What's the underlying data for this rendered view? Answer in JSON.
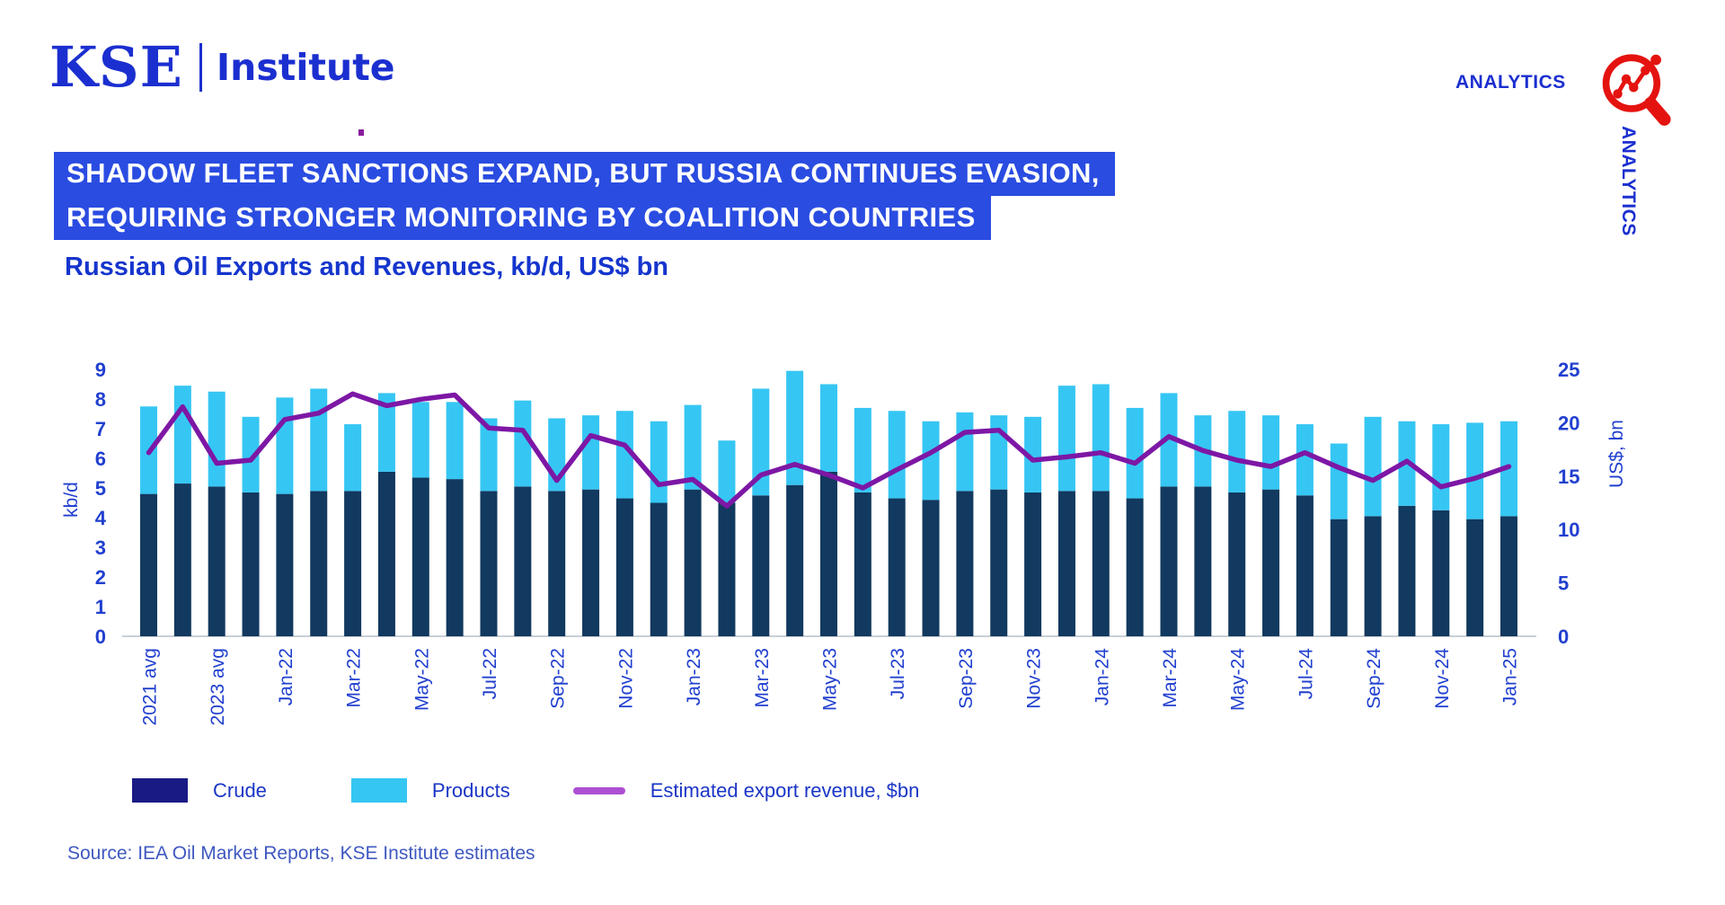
{
  "logo": {
    "kse": "KSE",
    "institute": "Institute"
  },
  "analytics": {
    "horizontal": "ANALYTICS",
    "vertical": "ANALYTICS",
    "icon": "magnifier-trend-icon"
  },
  "headline": {
    "line1": "SHADOW FLEET SANCTIONS EXPAND, BUT RUSSIA CONTINUES EVASION,",
    "line2": "REQUIRING STRONGER MONITORING BY COALITION COUNTRIES"
  },
  "chart_title": "Russian Oil Exports and Revenues, kb/d, US$ bn",
  "source": "Source: IEA Oil Market Reports, KSE Institute estimates",
  "colors": {
    "brand_blue": "#1b2fd0",
    "banner_bg": "#2a4ce1",
    "banner_text": "#ffffff",
    "title_blue": "#1535cd",
    "axis_text": "#2140cf",
    "axis_line": "#b9bfc9",
    "crude_bar": "#12395f",
    "products_bar": "#36c6f3",
    "revenue_line": "#7d17a5",
    "legend_crude_swatch": "#1a1a85",
    "legend_products_swatch": "#36c6f3",
    "legend_line_swatch": "#ad4fd2",
    "icon_red": "#e41310",
    "logo_dot_purple": "#8a1b9e",
    "source_text": "#3f58c0"
  },
  "legend": [
    {
      "label": "Crude",
      "type": "box",
      "color": "#1a1a85"
    },
    {
      "label": "Products",
      "type": "box",
      "color": "#36c6f3"
    },
    {
      "label": "Estimated export revenue, $bn",
      "type": "line",
      "color": "#ad4fd2"
    }
  ],
  "chart_data": {
    "type": "bar",
    "subtype": "stacked-bars-with-line",
    "title": "Russian Oil Exports and Revenues, kb/d, US$ bn",
    "y_axis": {
      "label": "kb/d",
      "range": [
        0,
        9
      ],
      "ticks": [
        0,
        1,
        2,
        3,
        4,
        5,
        6,
        7,
        8,
        9
      ]
    },
    "y2_axis": {
      "label": "US$, bn",
      "range": [
        0,
        25
      ],
      "ticks": [
        0,
        5,
        10,
        15,
        20,
        25
      ]
    },
    "x_tick_step": 2,
    "grid": false,
    "legend_position": "bottom",
    "categories": [
      "2021 avg",
      "2022 avg",
      "2023 avg",
      "2024 avg",
      "Jan-22",
      "Feb-22",
      "Mar-22",
      "Apr-22",
      "May-22",
      "Jun-22",
      "Jul-22",
      "Aug-22",
      "Sep-22",
      "Oct-22",
      "Nov-22",
      "Dec-22",
      "Jan-23",
      "Feb-23",
      "Mar-23",
      "Apr-23",
      "May-23",
      "Jun-23",
      "Jul-23",
      "Aug-23",
      "Sep-23",
      "Oct-23",
      "Nov-23",
      "Dec-23",
      "Jan-24",
      "Feb-24",
      "Mar-24",
      "Apr-24",
      "May-24",
      "Jun-24",
      "Jul-24",
      "Aug-24",
      "Sep-24",
      "Oct-24",
      "Nov-24",
      "Dec-24",
      "Jan-25"
    ],
    "series": [
      {
        "name": "Crude",
        "color": "#12395f",
        "values": [
          4.8,
          5.15,
          5.05,
          4.85,
          4.8,
          4.9,
          4.9,
          5.55,
          5.35,
          5.3,
          4.9,
          5.05,
          4.9,
          4.95,
          4.65,
          4.5,
          4.95,
          4.5,
          4.75,
          5.1,
          5.55,
          4.85,
          4.65,
          4.6,
          4.9,
          4.95,
          4.85,
          4.9,
          4.9,
          4.65,
          5.05,
          5.05,
          4.85,
          4.95,
          4.75,
          3.95,
          4.05,
          4.4,
          4.25,
          3.95,
          4.05
        ]
      },
      {
        "name": "Products",
        "color": "#36c6f3",
        "values": [
          2.95,
          3.3,
          3.2,
          2.55,
          3.25,
          3.45,
          2.25,
          2.65,
          2.55,
          2.6,
          2.45,
          2.9,
          2.45,
          2.5,
          2.95,
          2.75,
          2.85,
          2.1,
          3.6,
          3.85,
          2.95,
          2.85,
          2.95,
          2.65,
          2.65,
          2.5,
          2.55,
          3.55,
          3.6,
          3.05,
          3.15,
          2.4,
          2.75,
          2.5,
          2.4,
          2.55,
          3.35,
          2.85,
          2.9,
          3.25,
          3.2
        ]
      }
    ],
    "line": {
      "name": "Estimated export revenue, $bn",
      "color": "#7d17a5",
      "axis": "y2",
      "values": [
        17.2,
        21.5,
        16.2,
        16.5,
        20.3,
        20.9,
        22.7,
        21.6,
        22.2,
        22.6,
        19.5,
        19.3,
        14.6,
        18.8,
        17.9,
        14.2,
        14.7,
        12.2,
        15.1,
        16.1,
        15.1,
        13.9,
        15.6,
        17.2,
        19.1,
        19.3,
        16.5,
        16.8,
        17.2,
        16.2,
        18.7,
        17.4,
        16.5,
        15.9,
        17.2,
        15.8,
        14.6,
        16.4,
        14.0,
        14.8,
        15.9
      ]
    }
  }
}
